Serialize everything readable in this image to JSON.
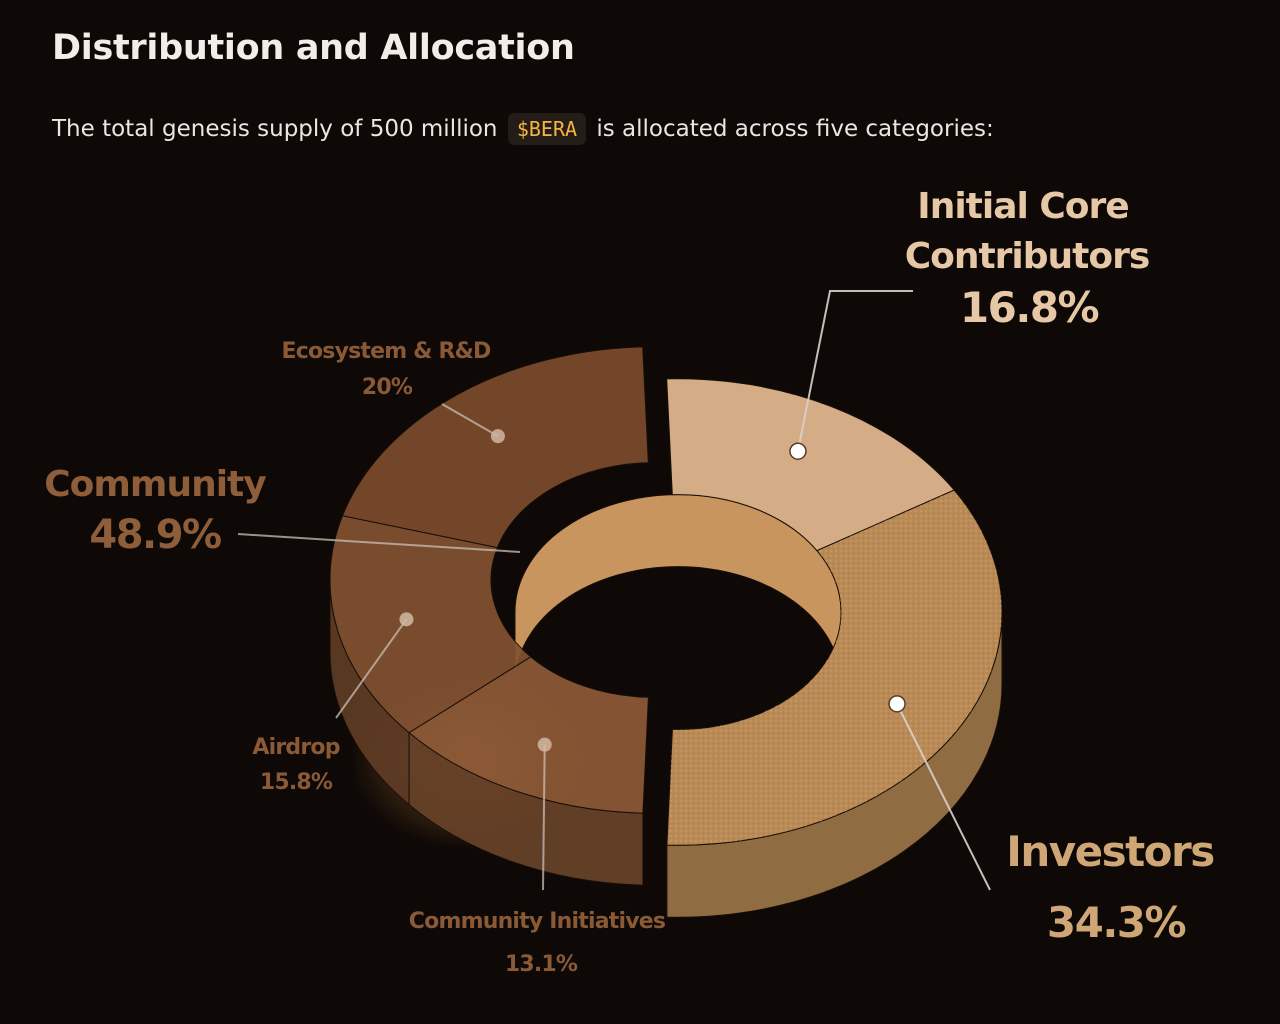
{
  "page": {
    "title": "Distribution and Allocation",
    "intro_before": "The total genesis supply of 500 million",
    "token": "$BERA",
    "intro_after": "is allocated across five categories:"
  },
  "colors": {
    "background": "#0e0806",
    "ecosystem": "#7d4c2c",
    "airdrop": "#835232",
    "community_initiatives": "#8d5a37",
    "investors": "#b98a55",
    "core_contributors": "#d4ad86",
    "label_dark": "#8a5a37",
    "label_light": "#e6c8a6",
    "token": "#f4b545"
  },
  "chart_data": {
    "type": "pie",
    "variant": "3d-donut",
    "slices": [
      {
        "label": "Initial Core Contributors",
        "value": 16.8,
        "display": "16.8%",
        "group": null
      },
      {
        "label": "Investors",
        "value": 34.3,
        "display": "34.3%",
        "group": null
      },
      {
        "label": "Community Initiatives",
        "value": 13.1,
        "display": "13.1%",
        "group": "Community"
      },
      {
        "label": "Airdrop",
        "value": 15.8,
        "display": "15.8%",
        "group": "Community"
      },
      {
        "label": "Ecosystem & R&D",
        "value": 20,
        "display": "20%",
        "group": "Community"
      }
    ],
    "groups": [
      {
        "label": "Community",
        "value": 48.9,
        "display": "48.9%"
      }
    ],
    "labels": {
      "core_line1": "Initial Core",
      "core_line2": "Contributors",
      "core_pct": "16.8%",
      "investors": "Investors",
      "investors_pct": "34.3%",
      "community": "Community",
      "community_pct": "48.9%",
      "ecosystem": "Ecosystem & R&D",
      "ecosystem_pct": "20%",
      "airdrop": "Airdrop",
      "airdrop_pct": "15.8%",
      "initiatives": "Community Initiatives",
      "initiatives_pct": "13.1%"
    }
  }
}
